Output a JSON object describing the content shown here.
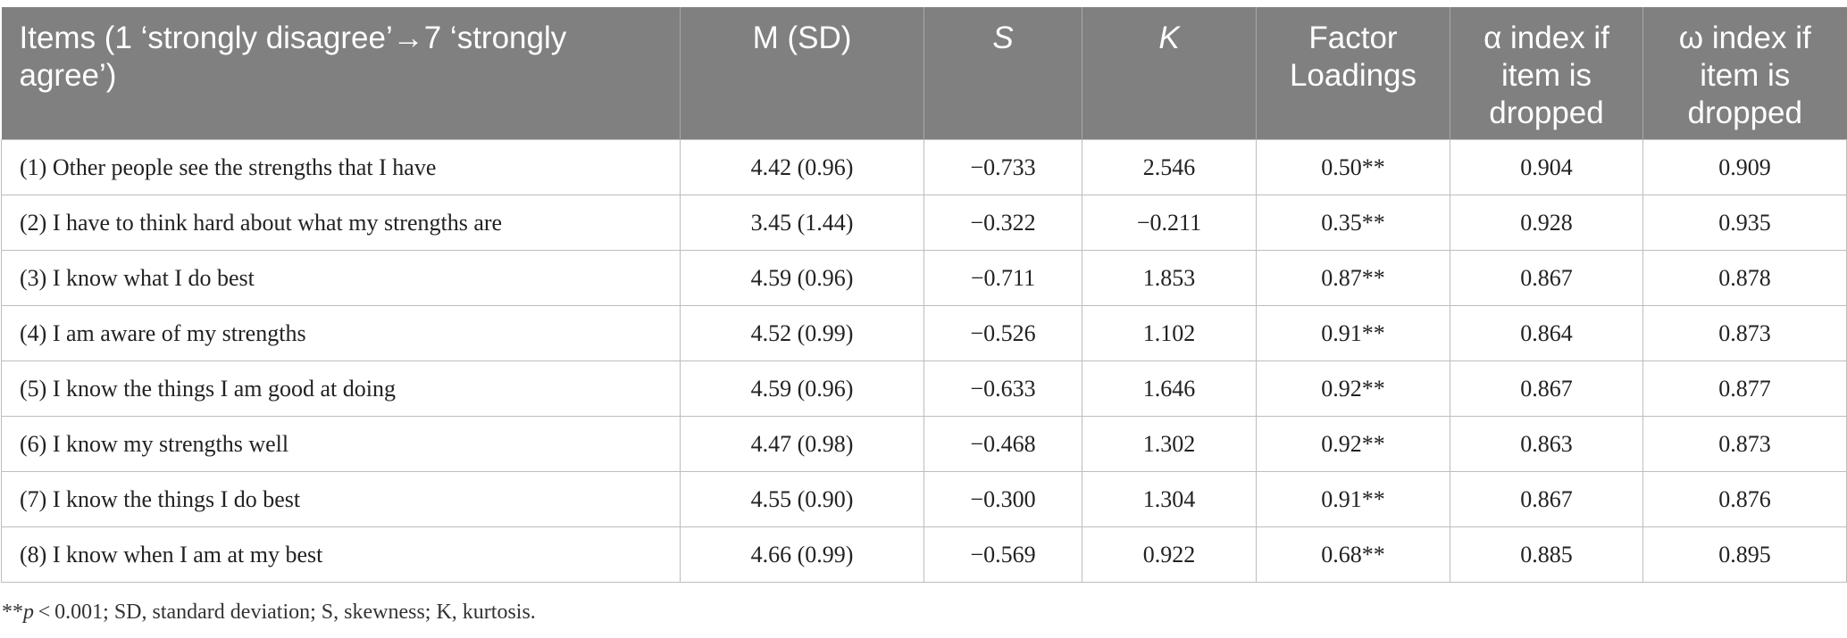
{
  "table": {
    "headers": [
      "Items (1 ‘strongly disagree’→7 ‘strongly agree’)",
      "M (SD)",
      "S",
      "K",
      "Factor Loadings",
      "α index if item is dropped",
      "ω index if item is dropped"
    ],
    "rows": [
      [
        "(1) Other people see the strengths that I have",
        "4.42 (0.96)",
        "−0.733",
        "2.546",
        "0.50**",
        "0.904",
        "0.909"
      ],
      [
        "(2) I have to think hard about what my strengths are",
        "3.45 (1.44)",
        "−0.322",
        "−0.211",
        "0.35**",
        "0.928",
        "0.935"
      ],
      [
        "(3) I know what I do best",
        "4.59 (0.96)",
        "−0.711",
        "1.853",
        "0.87**",
        "0.867",
        "0.878"
      ],
      [
        "(4) I am aware of my strengths",
        "4.52 (0.99)",
        "−0.526",
        "1.102",
        "0.91**",
        "0.864",
        "0.873"
      ],
      [
        "(5) I know the things I am good at doing",
        "4.59 (0.96)",
        "−0.633",
        "1.646",
        "0.92**",
        "0.867",
        "0.877"
      ],
      [
        "(6) I know my strengths well",
        "4.47 (0.98)",
        "−0.468",
        "1.302",
        "0.92**",
        "0.863",
        "0.873"
      ],
      [
        "(7) I know the things I do best",
        "4.55 (0.90)",
        "−0.300",
        "1.304",
        "0.91**",
        "0.867",
        "0.876"
      ],
      [
        "(8) I know when I am at my best",
        "4.66 (0.99)",
        "−0.569",
        "0.922",
        "0.68**",
        "0.885",
        "0.895"
      ]
    ]
  },
  "footnote": {
    "stars": "**",
    "p": "p",
    "rest": " < 0.001; SD, standard deviation; S, skewness; K, kurtosis."
  },
  "colors": {
    "header_bg": "#808080",
    "header_text": "#ffffff",
    "grid": "#bdbdbd"
  }
}
